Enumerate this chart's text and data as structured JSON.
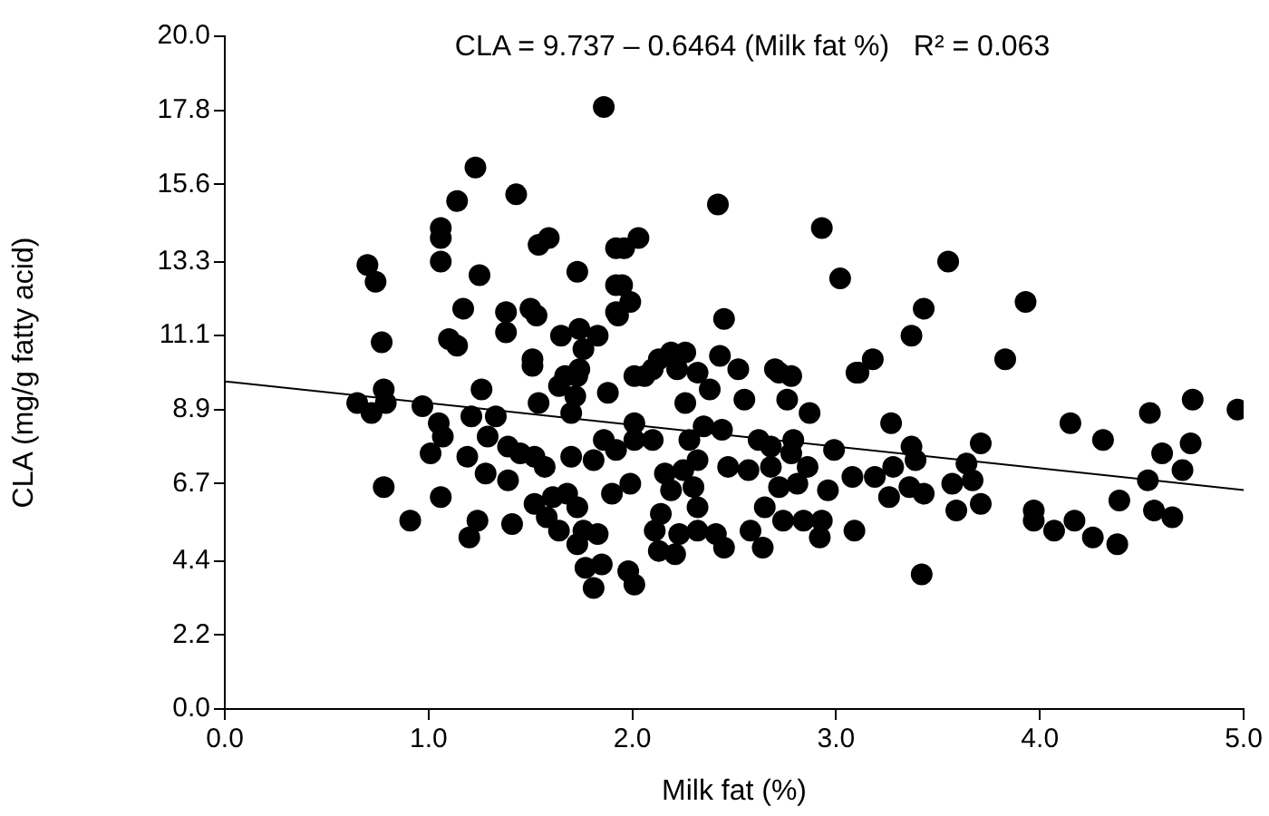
{
  "chart_data": {
    "type": "scatter",
    "xlabel": "Milk fat (%)",
    "ylabel": "CLA (mg/g fatty acid)",
    "annotations": [
      "CLA = 9.737 – 0.6464 (Milk fat %)   R² = 0.063"
    ],
    "xlim": [
      0,
      5
    ],
    "ylim": [
      0,
      20
    ],
    "xticks": [
      {
        "value": 0,
        "label": "0.0"
      },
      {
        "value": 1,
        "label": "1.0"
      },
      {
        "value": 2,
        "label": "2.0"
      },
      {
        "value": 3,
        "label": "3.0"
      },
      {
        "value": 4,
        "label": "4.0"
      },
      {
        "value": 5,
        "label": "5.0"
      }
    ],
    "yticks": [
      {
        "value": 0,
        "label": "0.0"
      },
      2.2,
      4.4,
      6.7,
      8.9,
      11.1,
      13.3,
      15.6,
      17.8,
      {
        "value": 20,
        "label": "20.0"
      }
    ],
    "grid": false,
    "legend": false,
    "series": [
      {
        "marker": "circle",
        "color": "#000000",
        "x": [
          1.86,
          1.23,
          1.14,
          1.43,
          1.06,
          1.06,
          1.59,
          1.54,
          0.7,
          0.74,
          1.06,
          1.25,
          1.73,
          1.92,
          1.92,
          1.17,
          1.38,
          1.5,
          1.53,
          1.38,
          0.77,
          1.1,
          1.14,
          1.51,
          1.65,
          1.74,
          1.83,
          1.76,
          1.92,
          1.74,
          1.67,
          0.78,
          0.65,
          0.72,
          0.79,
          0.97,
          1.05,
          1.07,
          1.26,
          1.21,
          1.33,
          1.29,
          1.01,
          1.19,
          1.39,
          1.45,
          1.52,
          1.57,
          1.28,
          1.39,
          0.78,
          1.06,
          0.91,
          1.24,
          1.2,
          1.41,
          1.52,
          1.61,
          1.68,
          1.73,
          1.58,
          1.64,
          1.76,
          1.83,
          1.73,
          1.77,
          1.85,
          1.81,
          1.51,
          1.64,
          1.73,
          1.72,
          1.7,
          1.54,
          1.88,
          1.86,
          1.81,
          1.7,
          1.9,
          2.42,
          2.93,
          3.02,
          3.43,
          3.37,
          1.96,
          2.03,
          1.95,
          1.99,
          1.93,
          2.45,
          2.19,
          2.26,
          2.13,
          2.43,
          2.52,
          2.7,
          2.78,
          3.18,
          3.11,
          2.32,
          2.06,
          2.01,
          2.1,
          2.22,
          2.38,
          2.26,
          2.55,
          2.76,
          2.72,
          2.87,
          3.1,
          3.27,
          2.01,
          2.01,
          1.92,
          2.1,
          2.35,
          2.44,
          2.28,
          2.32,
          2.62,
          2.68,
          2.79,
          2.78,
          2.99,
          3.37,
          3.28,
          2.47,
          2.57,
          2.68,
          2.86,
          2.81,
          2.72,
          2.96,
          3.08,
          3.19,
          3.26,
          1.99,
          2.16,
          2.25,
          2.3,
          2.19,
          2.32,
          2.65,
          2.14,
          2.11,
          2.23,
          2.32,
          2.41,
          2.45,
          2.13,
          2.21,
          2.58,
          2.64,
          2.74,
          2.84,
          2.93,
          2.92,
          3.09,
          1.98,
          2.01,
          3.42,
          3.55,
          3.93,
          3.83,
          4.15,
          4.31,
          4.54,
          4.75,
          4.97,
          4.6,
          4.74,
          4.7,
          4.53,
          3.39,
          3.71,
          3.64,
          3.67,
          3.57,
          3.43,
          3.36,
          3.71,
          3.59,
          4.39,
          3.97,
          3.97,
          4.07,
          4.17,
          4.26,
          4.38,
          4.56,
          4.65
        ],
        "values": [
          17.9,
          16.1,
          15.1,
          15.3,
          14.3,
          14.0,
          14.0,
          13.8,
          13.2,
          12.7,
          13.3,
          12.9,
          13.0,
          13.7,
          12.6,
          11.9,
          11.8,
          11.9,
          11.7,
          11.2,
          10.9,
          11.0,
          10.8,
          10.4,
          11.1,
          11.3,
          11.1,
          10.7,
          11.8,
          10.1,
          9.9,
          9.5,
          9.1,
          8.8,
          9.1,
          9.0,
          8.5,
          8.1,
          9.5,
          8.7,
          8.7,
          8.1,
          7.6,
          7.5,
          7.8,
          7.6,
          7.5,
          7.2,
          7.0,
          6.8,
          6.6,
          6.3,
          5.6,
          5.6,
          5.1,
          5.5,
          6.1,
          6.3,
          6.4,
          6.0,
          5.7,
          5.3,
          5.3,
          5.2,
          4.9,
          4.2,
          4.3,
          3.6,
          10.2,
          9.6,
          9.9,
          9.3,
          8.8,
          9.1,
          9.4,
          8.0,
          7.4,
          7.5,
          6.4,
          15.0,
          14.3,
          12.8,
          11.9,
          11.1,
          13.7,
          14.0,
          12.6,
          12.1,
          11.7,
          11.6,
          10.6,
          10.6,
          10.4,
          10.5,
          10.1,
          10.1,
          9.9,
          10.4,
          10.0,
          10.0,
          9.9,
          9.9,
          10.1,
          10.1,
          9.5,
          9.1,
          9.2,
          9.2,
          10.0,
          8.8,
          10.0,
          8.5,
          8.5,
          8.0,
          7.7,
          8.0,
          8.4,
          8.3,
          8.0,
          7.4,
          8.0,
          7.8,
          8.0,
          7.6,
          7.7,
          7.8,
          7.2,
          7.2,
          7.1,
          7.2,
          7.2,
          6.7,
          6.6,
          6.5,
          6.9,
          6.9,
          6.3,
          6.7,
          7.0,
          7.1,
          6.6,
          6.5,
          6.0,
          6.0,
          5.8,
          5.3,
          5.2,
          5.3,
          5.2,
          4.8,
          4.7,
          4.6,
          5.3,
          4.8,
          5.6,
          5.6,
          5.6,
          5.1,
          5.3,
          4.1,
          3.7,
          4.0,
          13.3,
          12.1,
          10.4,
          8.5,
          8.0,
          8.8,
          9.2,
          8.9,
          7.6,
          7.9,
          7.1,
          6.8,
          7.4,
          7.9,
          7.3,
          6.8,
          6.7,
          6.4,
          6.6,
          6.1,
          5.9,
          6.2,
          5.9,
          5.6,
          5.3,
          5.6,
          5.1,
          4.9,
          5.9,
          5.7
        ]
      },
      {
        "type": "line",
        "marker": "none",
        "color": "#000000",
        "x": [
          0,
          5
        ],
        "values": [
          9.74,
          6.51
        ]
      }
    ]
  }
}
